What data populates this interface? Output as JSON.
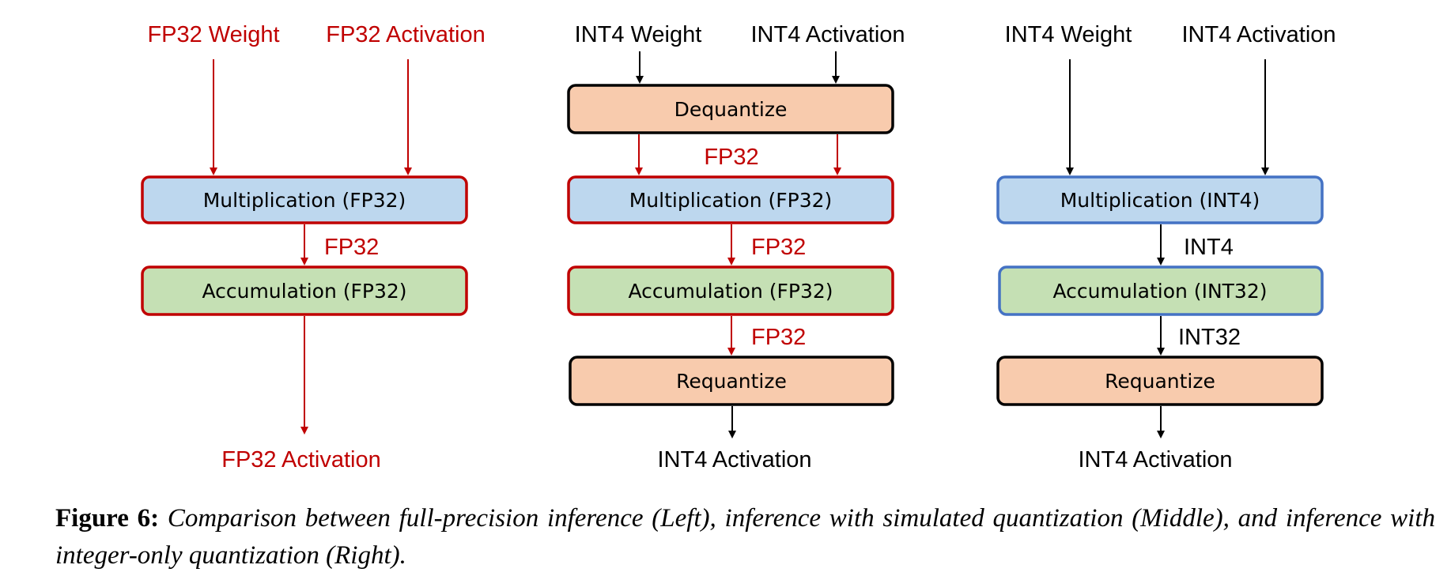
{
  "colors": {
    "red": "#c00000",
    "black": "#000000",
    "blue_border": "#4472c4",
    "blue_fill": "#bdd7ee",
    "green_fill": "#c5e0b4",
    "orange_fill": "#f8cbad"
  },
  "left": {
    "weight_label": "FP32 Weight",
    "activation_label": "FP32 Activation",
    "mult_box": "Multiplication (FP32)",
    "mult_out": "FP32",
    "acc_box": "Accumulation (FP32)",
    "output_label": "FP32 Activation"
  },
  "middle": {
    "weight_label": "INT4 Weight",
    "activation_label": "INT4 Activation",
    "dequant_box": "Dequantize",
    "dequant_out": "FP32",
    "mult_box": "Multiplication (FP32)",
    "mult_out": "FP32",
    "acc_box": "Accumulation (FP32)",
    "acc_out": "FP32",
    "requant_box": "Requantize",
    "output_label": "INT4 Activation"
  },
  "right": {
    "weight_label": "INT4 Weight",
    "activation_label": "INT4 Activation",
    "mult_box": "Multiplication (INT4)",
    "mult_out": "INT4",
    "acc_box": "Accumulation (INT32)",
    "acc_out": "INT32",
    "requant_box": "Requantize",
    "output_label": "INT4 Activation"
  },
  "caption": {
    "figure_label": "Figure 6:",
    "text": "Comparison between full-precision inference (Left), inference with simulated quantization (Middle), and inference with integer-only quantization (Right)."
  }
}
